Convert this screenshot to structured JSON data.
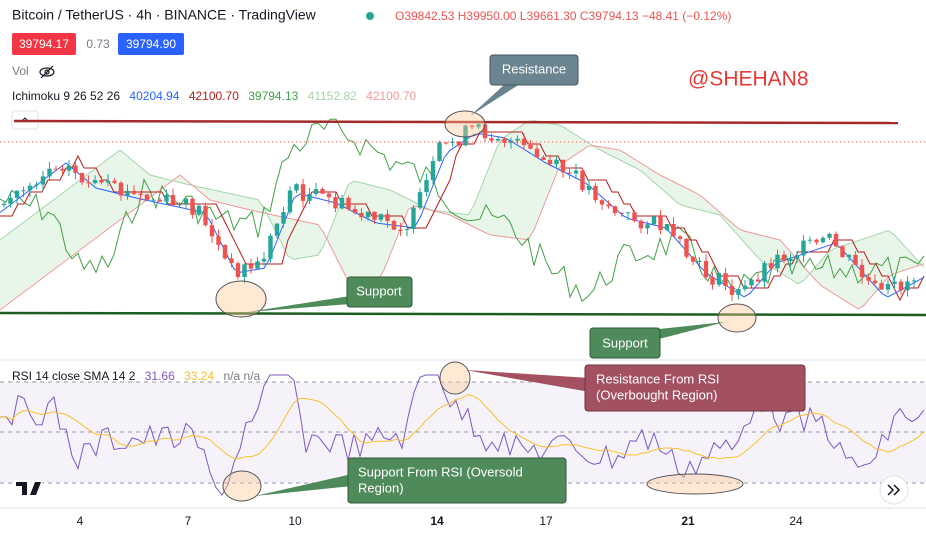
{
  "header": {
    "symbol": "Bitcoin / TetherUS · 4h · BINANCE · TradingView",
    "ohlc": [
      "O39842.53",
      "H39950.00",
      "L39661.30",
      "C39794.13"
    ],
    "change": "−48.41 (−0.12%)",
    "bid": "39794.17",
    "spread": "0.73",
    "ask": "39794.90"
  },
  "indicators": {
    "volume": "Vol",
    "ichimoku": {
      "label": "Ichimoku 9 26 52 26",
      "values": [
        "40204.94",
        "42100.70",
        "39794.13",
        "41152.82",
        "42100.70"
      ]
    },
    "rsi": {
      "label": "RSI 14 close SMA 14 2",
      "values": [
        "31.66",
        "33.24",
        "n/a n/a"
      ]
    }
  },
  "watermark": "@SHEHAN8",
  "annotations": {
    "resistance": "Resistance",
    "support_left": "Support",
    "support_right": "Support",
    "rsi_resistance": [
      "Resistance From RSI",
      "(Overbought Region)"
    ],
    "rsi_support": [
      "Support From RSI (Oversold",
      "Region)"
    ]
  },
  "x_axis_labels": [
    "4",
    "7",
    "10",
    "14",
    "17",
    "21",
    "24"
  ]
}
